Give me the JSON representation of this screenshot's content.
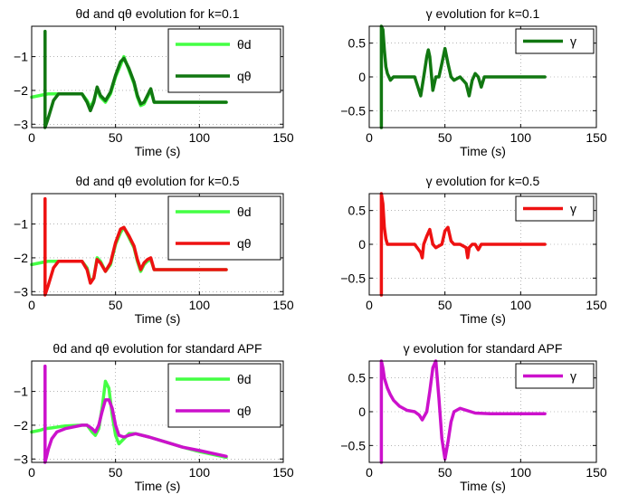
{
  "chart_data": [
    {
      "type": "line",
      "title": "θd and qθ evolution for k=0.1",
      "xlabel": "Time (s)",
      "xlim": [
        0,
        150
      ],
      "ylim": [
        -3.1,
        -0.1
      ],
      "xticks": [
        0,
        50,
        100,
        150
      ],
      "yticks": [
        -1,
        -2,
        -3
      ],
      "grid": true,
      "legend_position": "top-right",
      "series": [
        {
          "name": "θd",
          "color": "#44ff44",
          "x": [
            0,
            5,
            8,
            10,
            15,
            20,
            30,
            33,
            35,
            37,
            39,
            41,
            44,
            47,
            50,
            53,
            55,
            58,
            61,
            63,
            65,
            67,
            69,
            71,
            73,
            80,
            100,
            116
          ],
          "y": [
            -2.2,
            -2.15,
            -2.12,
            -2.1,
            -2.1,
            -2.1,
            -2.1,
            -2.3,
            -2.5,
            -2.3,
            -1.95,
            -2.2,
            -2.35,
            -2.1,
            -1.6,
            -1.25,
            -1.0,
            -1.4,
            -1.8,
            -2.2,
            -2.45,
            -2.4,
            -2.2,
            -2.0,
            -2.35,
            -2.35,
            -2.35,
            -2.35
          ]
        },
        {
          "name": "qθ",
          "color": "#117711",
          "x": [
            8,
            8,
            10,
            13,
            16,
            20,
            30,
            33,
            35,
            37,
            39,
            41,
            44,
            47,
            50,
            53,
            55,
            58,
            61,
            63,
            65,
            67,
            69,
            71,
            73,
            80,
            100,
            116
          ],
          "y": [
            -0.25,
            -3.1,
            -2.8,
            -2.3,
            -2.1,
            -2.1,
            -2.1,
            -2.35,
            -2.6,
            -2.35,
            -1.9,
            -2.15,
            -2.3,
            -2.05,
            -1.55,
            -1.15,
            -1.05,
            -1.35,
            -1.75,
            -2.15,
            -2.4,
            -2.35,
            -2.15,
            -1.95,
            -2.35,
            -2.35,
            -2.35,
            -2.35
          ]
        }
      ]
    },
    {
      "type": "line",
      "title": "γ evolution for k=0.1",
      "xlabel": "Time (s)",
      "xlim": [
        0,
        150
      ],
      "ylim": [
        -0.75,
        0.75
      ],
      "xticks": [
        0,
        50,
        100,
        150
      ],
      "yticks": [
        0.5,
        0,
        -0.5
      ],
      "grid": true,
      "legend_position": "top-right",
      "series": [
        {
          "name": "γ",
          "color": "#117711",
          "x": [
            8,
            8,
            9,
            10,
            11,
            12,
            13,
            14,
            16,
            20,
            30,
            34,
            36,
            38,
            39,
            40,
            42,
            44,
            46,
            48,
            50,
            52,
            54,
            56,
            60,
            64,
            66,
            68,
            70,
            72,
            74,
            76,
            80,
            100,
            116
          ],
          "y": [
            -0.75,
            0.75,
            0.7,
            0.4,
            0.15,
            0.05,
            0.0,
            -0.05,
            0.0,
            0.0,
            0.0,
            -0.28,
            0.0,
            0.3,
            0.4,
            0.3,
            -0.2,
            0.0,
            0.0,
            0.2,
            0.42,
            0.2,
            0.0,
            -0.05,
            0.0,
            -0.1,
            -0.28,
            -0.05,
            0.05,
            0.0,
            -0.15,
            0.0,
            0.0,
            0.0,
            0.0
          ]
        }
      ]
    },
    {
      "type": "line",
      "title": "θd and qθ evolution for k=0.5",
      "xlabel": "Time (s)",
      "xlim": [
        0,
        150
      ],
      "ylim": [
        -3.1,
        -0.1
      ],
      "xticks": [
        0,
        50,
        100,
        150
      ],
      "yticks": [
        -1,
        -2,
        -3
      ],
      "grid": true,
      "legend_position": "top-right",
      "series": [
        {
          "name": "θd",
          "color": "#44ff44",
          "x": [
            0,
            5,
            8,
            10,
            15,
            20,
            30,
            33,
            35,
            37,
            39,
            41,
            44,
            47,
            50,
            53,
            55,
            58,
            61,
            63,
            65,
            67,
            69,
            71,
            73,
            80,
            100,
            116
          ],
          "y": [
            -2.2,
            -2.15,
            -2.12,
            -2.1,
            -2.1,
            -2.1,
            -2.1,
            -2.3,
            -2.7,
            -2.6,
            -2.0,
            -2.1,
            -2.4,
            -2.2,
            -1.6,
            -1.25,
            -1.1,
            -1.4,
            -1.7,
            -2.1,
            -2.4,
            -2.2,
            -2.1,
            -2.05,
            -2.35,
            -2.35,
            -2.35,
            -2.35
          ]
        },
        {
          "name": "qθ",
          "color": "#ee1111",
          "x": [
            8,
            8,
            10,
            13,
            16,
            20,
            30,
            33,
            35,
            37,
            39,
            41,
            44,
            47,
            50,
            53,
            55,
            58,
            61,
            63,
            65,
            67,
            69,
            71,
            73,
            80,
            100,
            116
          ],
          "y": [
            -0.25,
            -3.1,
            -2.8,
            -2.3,
            -2.1,
            -2.1,
            -2.1,
            -2.35,
            -2.75,
            -2.6,
            -2.05,
            -2.15,
            -2.4,
            -2.15,
            -1.55,
            -1.15,
            -1.1,
            -1.35,
            -1.65,
            -2.05,
            -2.35,
            -2.15,
            -2.05,
            -2.0,
            -2.35,
            -2.35,
            -2.35,
            -2.35
          ]
        }
      ]
    },
    {
      "type": "line",
      "title": "γ evolution for k=0.5",
      "xlabel": "Time (s)",
      "xlim": [
        0,
        150
      ],
      "ylim": [
        -0.75,
        0.75
      ],
      "xticks": [
        0,
        50,
        100,
        150
      ],
      "yticks": [
        0.5,
        0,
        -0.5
      ],
      "grid": true,
      "legend_position": "top-right",
      "series": [
        {
          "name": "γ",
          "color": "#ee1111",
          "x": [
            8,
            8,
            9,
            10,
            11,
            12,
            14,
            16,
            20,
            30,
            34,
            35,
            36,
            38,
            40,
            42,
            44,
            48,
            50,
            52,
            54,
            56,
            60,
            64,
            65,
            66,
            68,
            70,
            72,
            74,
            76,
            80,
            100,
            116
          ],
          "y": [
            -0.75,
            0.75,
            0.6,
            0.25,
            0.08,
            0.0,
            0.0,
            0.0,
            0.0,
            0.0,
            -0.12,
            -0.2,
            0.0,
            0.12,
            0.22,
            0.0,
            -0.05,
            0.0,
            0.2,
            0.25,
            0.05,
            0.0,
            0.0,
            -0.05,
            -0.2,
            -0.05,
            0.0,
            0.0,
            -0.08,
            0.0,
            0.0,
            0.0,
            0.0,
            0.0
          ]
        }
      ]
    },
    {
      "type": "line",
      "title": "θd and qθ evolution for standard APF",
      "xlabel": "Time (s)",
      "xlim": [
        0,
        150
      ],
      "ylim": [
        -3.1,
        -0.1
      ],
      "xticks": [
        0,
        50,
        100,
        150
      ],
      "yticks": [
        -1,
        -2,
        -3
      ],
      "grid": true,
      "legend_position": "top-right",
      "series": [
        {
          "name": "θd",
          "color": "#44ff44",
          "x": [
            0,
            5,
            8,
            12,
            20,
            30,
            33,
            36,
            38,
            40,
            42,
            44,
            46,
            48,
            50,
            52,
            55,
            58,
            62,
            70,
            80,
            90,
            100,
            116
          ],
          "y": [
            -2.2,
            -2.15,
            -2.1,
            -2.08,
            -2.02,
            -2.0,
            -2.0,
            -2.2,
            -2.3,
            -2.1,
            -1.5,
            -0.7,
            -0.9,
            -1.7,
            -2.3,
            -2.55,
            -2.4,
            -2.25,
            -2.25,
            -2.35,
            -2.5,
            -2.65,
            -2.78,
            -2.95
          ]
        },
        {
          "name": "qθ",
          "color": "#cc11cc",
          "x": [
            8,
            8,
            9,
            10,
            12,
            15,
            20,
            25,
            30,
            33,
            36,
            38,
            40,
            42,
            44,
            46,
            48,
            50,
            52,
            55,
            58,
            62,
            70,
            80,
            90,
            100,
            116
          ],
          "y": [
            -0.25,
            -3.1,
            -2.9,
            -2.7,
            -2.4,
            -2.2,
            -2.1,
            -2.05,
            -2.0,
            -2.0,
            -2.1,
            -2.2,
            -2.0,
            -1.6,
            -1.25,
            -1.25,
            -1.5,
            -2.0,
            -2.3,
            -2.35,
            -2.3,
            -2.25,
            -2.35,
            -2.5,
            -2.65,
            -2.75,
            -2.92
          ]
        }
      ]
    },
    {
      "type": "line",
      "title": "γ evolution for standard APF",
      "xlabel": "Time (s)",
      "xlim": [
        0,
        150
      ],
      "ylim": [
        -0.75,
        0.75
      ],
      "xticks": [
        0,
        50,
        100,
        150
      ],
      "yticks": [
        0.5,
        0,
        -0.5
      ],
      "grid": true,
      "legend_position": "top-right",
      "series": [
        {
          "name": "γ",
          "color": "#cc11cc",
          "x": [
            8,
            8,
            9,
            10,
            12,
            14,
            16,
            20,
            25,
            30,
            33,
            35,
            38,
            40,
            42,
            44,
            46,
            48,
            50,
            52,
            54,
            56,
            60,
            70,
            80,
            100,
            116
          ],
          "y": [
            -0.75,
            0.75,
            0.65,
            0.5,
            0.35,
            0.25,
            0.17,
            0.08,
            0.02,
            0.0,
            -0.05,
            -0.12,
            0.0,
            0.3,
            0.65,
            0.75,
            0.2,
            -0.4,
            -0.7,
            -0.45,
            -0.15,
            0.0,
            0.05,
            -0.02,
            -0.03,
            -0.03,
            -0.03
          ]
        }
      ]
    }
  ]
}
